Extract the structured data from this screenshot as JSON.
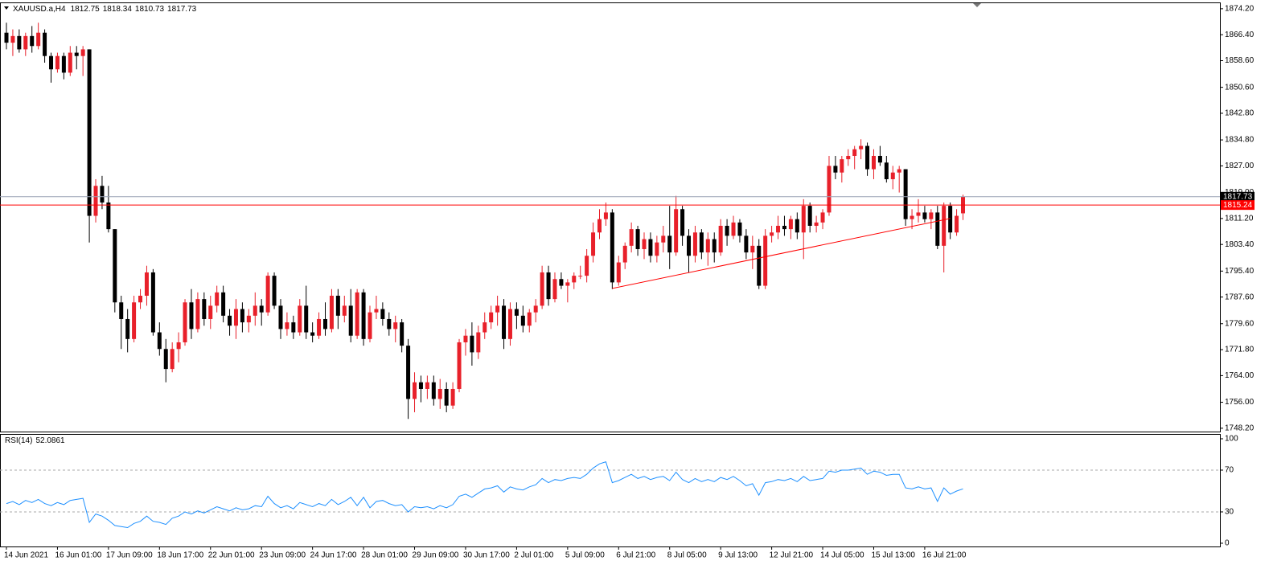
{
  "chart_data": [
    {
      "type": "candlestick",
      "symbol": "XAUUSD.a,H4",
      "up_color": "#e8202a",
      "down_color": "#000000",
      "ylim": [
        1747.2,
        1876.1
      ],
      "yticks": [
        {
          "value": 1874.2,
          "label": "1874.20"
        },
        {
          "value": 1866.4,
          "label": "1866.40"
        },
        {
          "value": 1858.6,
          "label": "1858.60"
        },
        {
          "value": 1850.6,
          "label": "1850.60"
        },
        {
          "value": 1842.8,
          "label": "1842.80"
        },
        {
          "value": 1834.8,
          "label": "1834.80"
        },
        {
          "value": 1827,
          "label": "1827.00"
        },
        {
          "value": 1819,
          "label": "1819.00"
        },
        {
          "value": 1811.2,
          "label": "1811.20"
        },
        {
          "value": 1803.4,
          "label": "1803.40"
        },
        {
          "value": 1795.4,
          "label": "1795.40"
        },
        {
          "value": 1787.6,
          "label": "1787.60"
        },
        {
          "value": 1779.6,
          "label": "1779.60"
        },
        {
          "value": 1771.8,
          "label": "1771.80"
        },
        {
          "value": 1764,
          "label": "1764.00"
        },
        {
          "value": 1756,
          "label": "1756.00"
        },
        {
          "value": 1748.2,
          "label": "1748.20"
        }
      ],
      "price_lines": [
        {
          "value": 1817.73,
          "color": "#9aa3b5",
          "label_color": "#000000"
        },
        {
          "value": 1815.24,
          "color": "#ff0000",
          "label_color": "#ff0000"
        }
      ],
      "trendline": {
        "color": "#ff0000",
        "start": {
          "index": 95,
          "price": 1790.2
        },
        "end": {
          "index": 148,
          "price": 1811.2
        }
      },
      "categories": [
        "14 Jun 2021",
        null,
        null,
        null,
        null,
        null,
        null,
        null,
        "16 Jun 01:00",
        null,
        null,
        null,
        null,
        null,
        null,
        null,
        "17 Jun 09:00",
        null,
        null,
        null,
        null,
        null,
        null,
        null,
        "18 Jun 17:00",
        null,
        null,
        null,
        null,
        null,
        null,
        null,
        "22 Jun 01:00",
        null,
        null,
        null,
        null,
        null,
        null,
        null,
        "23 Jun 09:00",
        null,
        null,
        null,
        null,
        null,
        null,
        null,
        "24 Jun 17:00",
        null,
        null,
        null,
        null,
        null,
        null,
        null,
        "28 Jun 01:00",
        null,
        null,
        null,
        null,
        null,
        null,
        null,
        "29 Jun 09:00",
        null,
        null,
        null,
        null,
        null,
        null,
        null,
        "30 Jun 17:00",
        null,
        null,
        null,
        null,
        null,
        null,
        null,
        "2 Jul 01:00",
        null,
        null,
        null,
        null,
        null,
        null,
        null,
        "5 Jul 09:00",
        null,
        null,
        null,
        null,
        null,
        null,
        null,
        "6 Jul 21:00",
        null,
        null,
        null,
        null,
        null,
        null,
        null,
        "8 Jul 05:00",
        null,
        null,
        null,
        null,
        null,
        null,
        null,
        "9 Jul 13:00",
        null,
        null,
        null,
        null,
        null,
        null,
        null,
        "12 Jul 21:00",
        null,
        null,
        null,
        null,
        null,
        null,
        null,
        "14 Jul 05:00",
        null,
        null,
        null,
        null,
        null,
        null,
        null,
        "15 Jul 13:00",
        null,
        null,
        null,
        null,
        null,
        null,
        null,
        "16 Jul 21:00",
        null,
        null,
        null,
        null,
        null,
        null
      ],
      "candles": [
        [
          1867,
          1870,
          1862,
          1864
        ],
        [
          1864,
          1868,
          1860,
          1866
        ],
        [
          1866,
          1868,
          1861,
          1862
        ],
        [
          1862,
          1867,
          1860,
          1866
        ],
        [
          1866,
          1869,
          1861,
          1863
        ],
        [
          1863,
          1870,
          1862,
          1867
        ],
        [
          1867,
          1868,
          1858,
          1860
        ],
        [
          1860,
          1861,
          1852,
          1856
        ],
        [
          1856,
          1861,
          1855,
          1860
        ],
        [
          1860,
          1861,
          1853,
          1855
        ],
        [
          1855,
          1863,
          1854,
          1861
        ],
        [
          1861,
          1863,
          1856,
          1860
        ],
        [
          1860,
          1863,
          1854,
          1862
        ],
        [
          1862,
          1862,
          1804,
          1812
        ],
        [
          1812,
          1823,
          1810,
          1821
        ],
        [
          1821,
          1824,
          1814,
          1816
        ],
        [
          1816,
          1821,
          1807,
          1808
        ],
        [
          1808,
          1808,
          1783,
          1786
        ],
        [
          1786,
          1788,
          1772,
          1781
        ],
        [
          1781,
          1784,
          1771,
          1775
        ],
        [
          1775,
          1788,
          1774,
          1786
        ],
        [
          1786,
          1790,
          1784,
          1788
        ],
        [
          1788,
          1797,
          1785,
          1795
        ],
        [
          1795,
          1796,
          1776,
          1777
        ],
        [
          1777,
          1780,
          1770,
          1772
        ],
        [
          1772,
          1775,
          1762,
          1766
        ],
        [
          1766,
          1774,
          1765,
          1772
        ],
        [
          1772,
          1777,
          1768,
          1774
        ],
        [
          1774,
          1787,
          1773,
          1786
        ],
        [
          1786,
          1790,
          1775,
          1778
        ],
        [
          1778,
          1789,
          1777,
          1787
        ],
        [
          1787,
          1789,
          1779,
          1781
        ],
        [
          1781,
          1788,
          1778,
          1785
        ],
        [
          1785,
          1791,
          1783,
          1789
        ],
        [
          1789,
          1791,
          1780,
          1782
        ],
        [
          1782,
          1784,
          1776,
          1779
        ],
        [
          1779,
          1787,
          1775,
          1784
        ],
        [
          1784,
          1786,
          1777,
          1780
        ],
        [
          1780,
          1784,
          1777,
          1782
        ],
        [
          1782,
          1789,
          1779,
          1785
        ],
        [
          1785,
          1787,
          1779,
          1783
        ],
        [
          1783,
          1795,
          1782,
          1794
        ],
        [
          1794,
          1795,
          1784,
          1785
        ],
        [
          1785,
          1787,
          1775,
          1778
        ],
        [
          1778,
          1783,
          1776,
          1780
        ],
        [
          1780,
          1782,
          1775,
          1777
        ],
        [
          1777,
          1787,
          1776,
          1785
        ],
        [
          1785,
          1791,
          1775,
          1777
        ],
        [
          1777,
          1780,
          1774,
          1776
        ],
        [
          1776,
          1783,
          1775,
          1781
        ],
        [
          1781,
          1786,
          1776,
          1778
        ],
        [
          1778,
          1790,
          1777,
          1788
        ],
        [
          1788,
          1790,
          1778,
          1782
        ],
        [
          1782,
          1788,
          1780,
          1785
        ],
        [
          1785,
          1790,
          1774,
          1776
        ],
        [
          1776,
          1790,
          1775,
          1789
        ],
        [
          1789,
          1790,
          1773,
          1775
        ],
        [
          1775,
          1785,
          1774,
          1783
        ],
        [
          1783,
          1788,
          1781,
          1784
        ],
        [
          1784,
          1786,
          1779,
          1781
        ],
        [
          1781,
          1783,
          1776,
          1778
        ],
        [
          1778,
          1782,
          1774,
          1780
        ],
        [
          1780,
          1781,
          1771,
          1773
        ],
        [
          1773,
          1775,
          1751,
          1757
        ],
        [
          1757,
          1765,
          1753,
          1762
        ],
        [
          1762,
          1764,
          1756,
          1760
        ],
        [
          1760,
          1764,
          1757,
          1762
        ],
        [
          1762,
          1764,
          1755,
          1757
        ],
        [
          1757,
          1763,
          1754,
          1760
        ],
        [
          1760,
          1762,
          1753,
          1755
        ],
        [
          1755,
          1762,
          1754,
          1760
        ],
        [
          1760,
          1775,
          1759,
          1774
        ],
        [
          1774,
          1778,
          1770,
          1776
        ],
        [
          1776,
          1780,
          1767,
          1771
        ],
        [
          1771,
          1779,
          1769,
          1777
        ],
        [
          1777,
          1783,
          1775,
          1780
        ],
        [
          1780,
          1785,
          1778,
          1783
        ],
        [
          1783,
          1788,
          1779,
          1785
        ],
        [
          1785,
          1787,
          1772,
          1775
        ],
        [
          1775,
          1786,
          1773,
          1784
        ],
        [
          1784,
          1786,
          1778,
          1782
        ],
        [
          1782,
          1785,
          1777,
          1779
        ],
        [
          1779,
          1784,
          1777,
          1783
        ],
        [
          1783,
          1787,
          1780,
          1785
        ],
        [
          1785,
          1797,
          1784,
          1795
        ],
        [
          1795,
          1797,
          1785,
          1787
        ],
        [
          1787,
          1795,
          1786,
          1793
        ],
        [
          1793,
          1795,
          1790,
          1791
        ],
        [
          1791,
          1793,
          1786,
          1792
        ],
        [
          1792,
          1795,
          1790,
          1794
        ],
        [
          1794,
          1797,
          1793,
          1794
        ],
        [
          1794,
          1802,
          1792,
          1800
        ],
        [
          1800,
          1810,
          1798,
          1807
        ],
        [
          1807,
          1814,
          1805,
          1811
        ],
        [
          1811,
          1816,
          1809,
          1813
        ],
        [
          1813,
          1814,
          1790,
          1792
        ],
        [
          1792,
          1800,
          1791,
          1798
        ],
        [
          1798,
          1804,
          1796,
          1803
        ],
        [
          1803,
          1810,
          1801,
          1808
        ],
        [
          1808,
          1809,
          1800,
          1802
        ],
        [
          1802,
          1807,
          1799,
          1805
        ],
        [
          1805,
          1807,
          1798,
          1800
        ],
        [
          1800,
          1806,
          1798,
          1804
        ],
        [
          1804,
          1809,
          1801,
          1806
        ],
        [
          1806,
          1815,
          1796,
          1801
        ],
        [
          1801,
          1818,
          1800,
          1814
        ],
        [
          1814,
          1815,
          1803,
          1806
        ],
        [
          1806,
          1808,
          1795,
          1800
        ],
        [
          1800,
          1809,
          1798,
          1807
        ],
        [
          1807,
          1808,
          1799,
          1801
        ],
        [
          1801,
          1807,
          1797,
          1805
        ],
        [
          1805,
          1807,
          1798,
          1801
        ],
        [
          1801,
          1811,
          1800,
          1809
        ],
        [
          1809,
          1811,
          1803,
          1806
        ],
        [
          1806,
          1812,
          1805,
          1810
        ],
        [
          1810,
          1811,
          1804,
          1806
        ],
        [
          1806,
          1808,
          1799,
          1801
        ],
        [
          1801,
          1806,
          1796,
          1803
        ],
        [
          1803,
          1805,
          1790,
          1791
        ],
        [
          1791,
          1808,
          1790,
          1806
        ],
        [
          1806,
          1809,
          1804,
          1807
        ],
        [
          1807,
          1812,
          1805,
          1809
        ],
        [
          1809,
          1812,
          1806,
          1808
        ],
        [
          1808,
          1812,
          1805,
          1811
        ],
        [
          1811,
          1813,
          1805,
          1807
        ],
        [
          1807,
          1817,
          1799,
          1815
        ],
        [
          1815,
          1816,
          1807,
          1809
        ],
        [
          1809,
          1812,
          1807,
          1810
        ],
        [
          1810,
          1814,
          1808,
          1813
        ],
        [
          1813,
          1830,
          1812,
          1827
        ],
        [
          1827,
          1830,
          1823,
          1825
        ],
        [
          1825,
          1830,
          1822,
          1829
        ],
        [
          1829,
          1832,
          1827,
          1830
        ],
        [
          1830,
          1833,
          1826,
          1832
        ],
        [
          1832,
          1835,
          1829,
          1833
        ],
        [
          1833,
          1834,
          1824,
          1826
        ],
        [
          1826,
          1832,
          1823,
          1830
        ],
        [
          1830,
          1833,
          1827,
          1828
        ],
        [
          1828,
          1830,
          1822,
          1823
        ],
        [
          1823,
          1827,
          1820,
          1825
        ],
        [
          1825,
          1827,
          1819,
          1826
        ],
        [
          1826,
          1826,
          1809,
          1811
        ],
        [
          1811,
          1814,
          1808,
          1812
        ],
        [
          1812,
          1817,
          1810,
          1813
        ],
        [
          1813,
          1815,
          1810,
          1811
        ],
        [
          1811,
          1814,
          1808,
          1813
        ],
        [
          1813,
          1815,
          1802,
          1803
        ],
        [
          1803,
          1816,
          1795,
          1815
        ],
        [
          1815,
          1816,
          1805,
          1807
        ],
        [
          1807,
          1814,
          1806,
          1812
        ],
        [
          1812.75,
          1818.34,
          1810.73,
          1817.73
        ]
      ]
    },
    {
      "type": "line",
      "title": "RSI(14)",
      "color": "#1e90ff",
      "ylim": [
        -3.1,
        104.6
      ],
      "yticks": [
        100,
        70,
        30,
        0
      ],
      "levels": [
        70,
        30
      ],
      "values": [
        38,
        40,
        37,
        41,
        39,
        42,
        38,
        36,
        39,
        37,
        41,
        42,
        43,
        20,
        28,
        26,
        22,
        17,
        16,
        15,
        19,
        21,
        26,
        21,
        20,
        18,
        24,
        26,
        30,
        28,
        31,
        29,
        32,
        35,
        33,
        31,
        34,
        32,
        33,
        36,
        35,
        45,
        38,
        34,
        36,
        33,
        39,
        37,
        35,
        38,
        36,
        42,
        37,
        40,
        44,
        36,
        44,
        34,
        40,
        41,
        38,
        36,
        37,
        30,
        35,
        34,
        35,
        33,
        36,
        34,
        37,
        45,
        47,
        44,
        48,
        52,
        53,
        55,
        49,
        54,
        52,
        51,
        54,
        56,
        62,
        58,
        61,
        60,
        62,
        63,
        62,
        66,
        72,
        76,
        78,
        58,
        60,
        63,
        66,
        62,
        64,
        61,
        63,
        64,
        60,
        68,
        61,
        58,
        62,
        59,
        61,
        59,
        63,
        61,
        64,
        60,
        55,
        57,
        46,
        58,
        59,
        61,
        60,
        62,
        59,
        64,
        60,
        61,
        62,
        69,
        68,
        70,
        70,
        71,
        72,
        66,
        69,
        68,
        65,
        66,
        66,
        53,
        52,
        54,
        52,
        53,
        40,
        53,
        47,
        50,
        52.0861
      ]
    }
  ]
}
